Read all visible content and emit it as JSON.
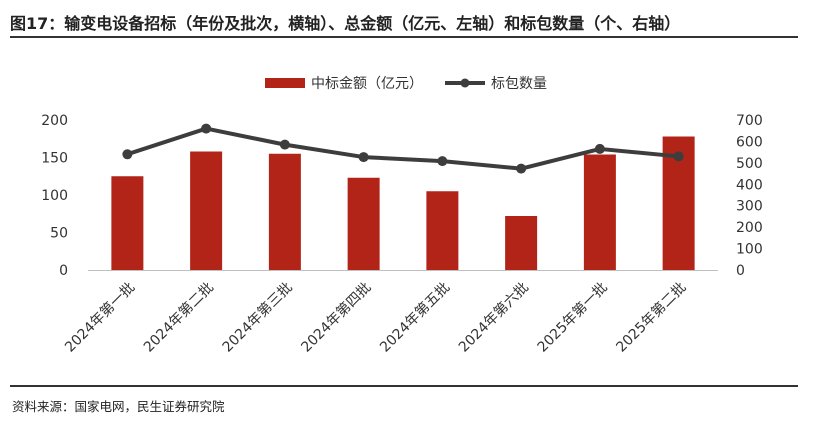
{
  "page": {
    "title": "图17：输变电设备招标（年份及批次，横轴）、总金额（亿元、左轴）和标包数量（个、右轴）",
    "source": "资料来源：国家电网，民生证券研究院"
  },
  "chart_data": {
    "type": "bar+line",
    "categories": [
      "2024年第一批",
      "2024年第二批",
      "2024年第三批",
      "2024年第四批",
      "2024年第五批",
      "2024年第六批",
      "2025年第一批",
      "2025年第二批"
    ],
    "series": [
      {
        "name": "中标金额（亿元）",
        "type": "bar",
        "axis": "left",
        "color": "#b22418",
        "values": [
          125,
          158,
          155,
          123,
          105,
          72,
          154,
          178
        ]
      },
      {
        "name": "标包数量",
        "type": "line",
        "axis": "right",
        "color": "#3d3d3d",
        "values": [
          540,
          660,
          585,
          527,
          508,
          473,
          565,
          530
        ]
      }
    ],
    "y_left": {
      "min": 0,
      "max": 200,
      "ticks": [
        0,
        50,
        100,
        150,
        200
      ]
    },
    "y_right": {
      "min": 0,
      "max": 700,
      "ticks": [
        0,
        100,
        200,
        300,
        400,
        500,
        600,
        700
      ]
    },
    "legend_position": "top-center"
  }
}
